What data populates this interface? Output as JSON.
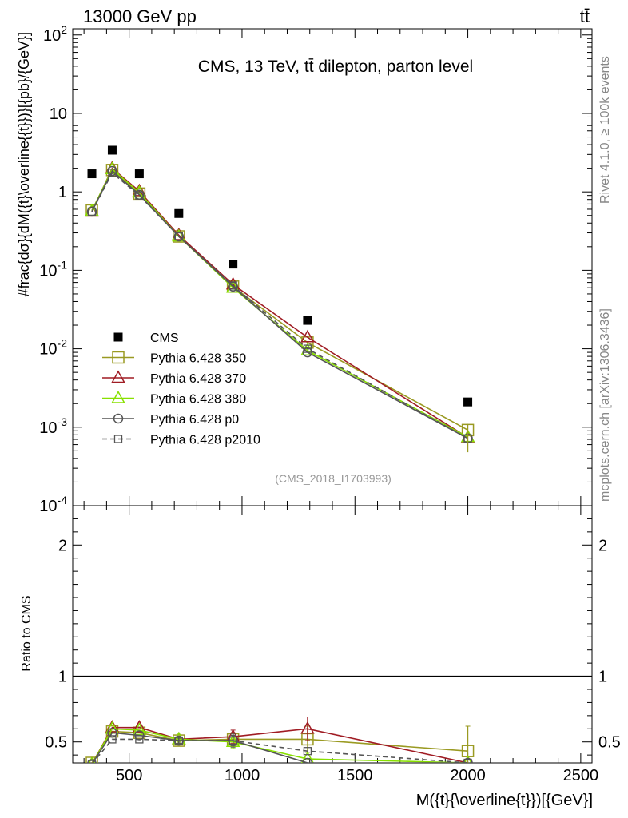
{
  "header": {
    "left": "13000 GeV pp",
    "right": "tt̄"
  },
  "side_labels": {
    "rivet": "Rivet 4.1.0, ≥ 100k events",
    "mcplots": "mcplots.cern.ch [arXiv:1306.3436]"
  },
  "chart_data": {
    "type": "line",
    "title": "CMS, 13 TeV, tt̄ dilepton, parton level",
    "analysis_id": "(CMS_2018_I1703993)",
    "xlabel": "M({t}{\\overline{t}})[{GeV}]",
    "ylabel": "#frac{dσ}{dM({t}\\overline{{t}})}[{pb}/{GeV}]",
    "ratio_ylabel": "Ratio to CMS",
    "xlim": [
      250,
      2550
    ],
    "ylim": [
      0.0001,
      120
    ],
    "ratio_ylim": [
      0.34,
      2.3
    ],
    "x_ticks": [
      "500",
      "1000",
      "1500",
      "2000",
      "2500"
    ],
    "y_ticks": [
      "10^{-4}",
      "10^{-3}",
      "10^{-2}",
      "10^{-1}",
      "1",
      "10",
      "10^{2}"
    ],
    "ratio_ticks": [
      "0.5",
      "1",
      "2"
    ],
    "x": [
      335,
      425,
      545,
      720,
      960,
      1290,
      2000
    ],
    "data": {
      "name": "CMS",
      "values": [
        1.7,
        3.4,
        1.7,
        0.53,
        0.12,
        0.023,
        0.0021
      ]
    },
    "series": [
      {
        "name": "Pythia 6.428 350",
        "color": "#9a9a22",
        "marker": "square",
        "dashed": false,
        "values": [
          0.58,
          1.9,
          0.95,
          0.27,
          0.062,
          0.012,
          0.00092
        ],
        "ratio": [
          0.34,
          0.58,
          0.57,
          0.51,
          0.52,
          0.52,
          0.43
        ],
        "ratio_err": [
          0,
          0,
          0,
          0.02,
          0.05,
          0.1,
          0.19
        ]
      },
      {
        "name": "Pythia 6.428 370",
        "color": "#a01c24",
        "marker": "triangle",
        "dashed": false,
        "values": [
          0.56,
          2.0,
          1.02,
          0.28,
          0.066,
          0.014,
          0.00074
        ],
        "ratio": [
          0.33,
          0.61,
          0.61,
          0.52,
          0.54,
          0.6,
          0.34
        ],
        "ratio_err": [
          0,
          0,
          0,
          0.02,
          0.05,
          0.09,
          0
        ]
      },
      {
        "name": "Pythia 6.428 380",
        "color": "#88e000",
        "marker": "triangle",
        "dashed": false,
        "values": [
          0.57,
          1.95,
          0.98,
          0.27,
          0.06,
          0.0095,
          0.00075
        ],
        "ratio": [
          0.33,
          0.6,
          0.59,
          0.52,
          0.5,
          0.37,
          0.34
        ],
        "ratio_err": [
          0,
          0,
          0,
          0.02,
          0.05,
          0,
          0
        ]
      },
      {
        "name": "Pythia 6.428 p0",
        "color": "#555555",
        "marker": "circle",
        "dashed": false,
        "values": [
          0.56,
          1.85,
          0.92,
          0.27,
          0.062,
          0.009,
          0.00072
        ],
        "ratio": [
          0.33,
          0.57,
          0.55,
          0.51,
          0.51,
          0.34,
          0.34
        ],
        "ratio_err": [
          0,
          0,
          0,
          0.02,
          0.05,
          0,
          0
        ]
      },
      {
        "name": "Pythia 6.428 p2010",
        "color": "#555555",
        "marker": "square-small",
        "dashed": true,
        "values": [
          0.56,
          1.75,
          0.9,
          0.27,
          0.064,
          0.01,
          0.00072
        ],
        "ratio": [
          0.33,
          0.52,
          0.52,
          0.51,
          0.51,
          0.43,
          0.34
        ],
        "ratio_err": [
          0,
          0,
          0,
          0.02,
          0.04,
          0,
          0
        ]
      }
    ],
    "legend_position": "left-middle"
  }
}
